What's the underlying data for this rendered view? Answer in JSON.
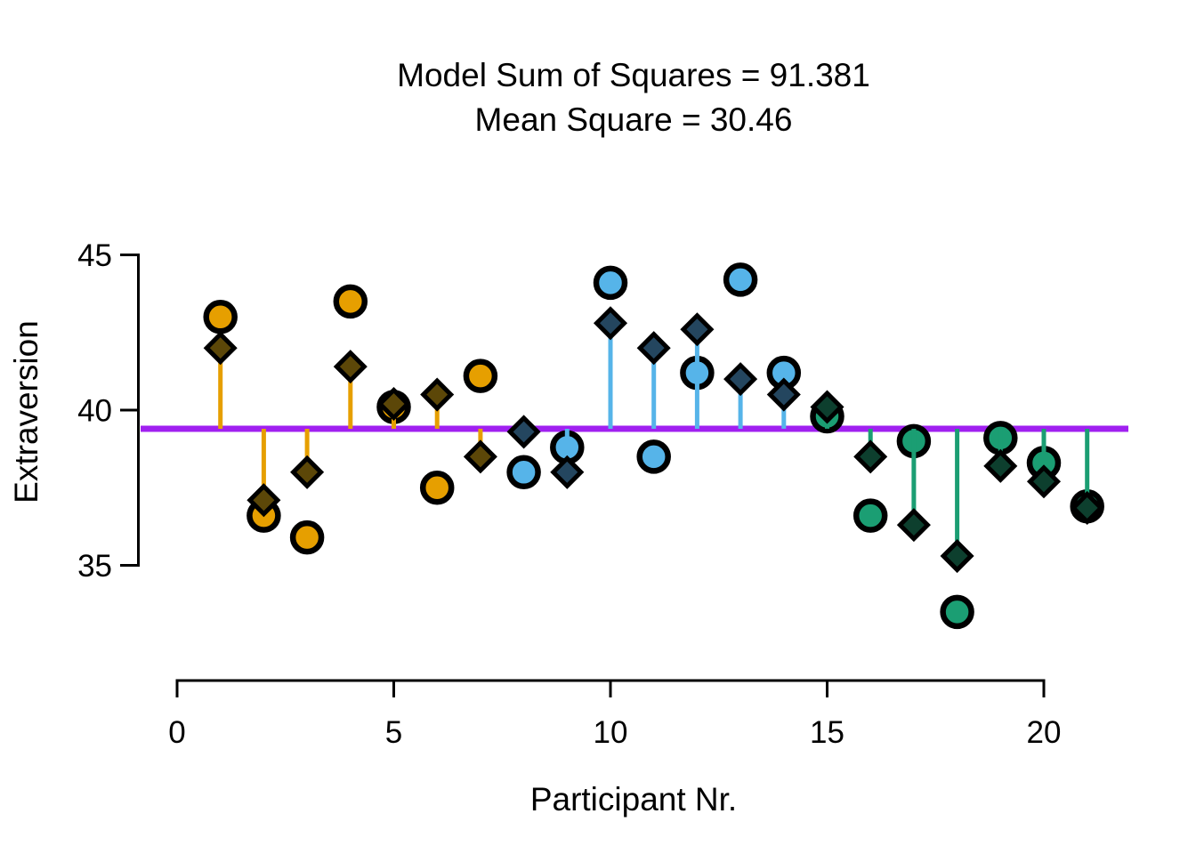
{
  "title": {
    "line1": "Model Sum of Squares = 91.381",
    "line2": "Mean Square = 30.46"
  },
  "chart_data": {
    "type": "scatter",
    "title": "Model Sum of Squares = 91.381",
    "subtitle": "Mean Square = 30.46",
    "xlabel": "Participant Nr.",
    "ylabel": "Extraversion",
    "x_ticks": [
      0,
      5,
      10,
      15,
      20
    ],
    "y_ticks": [
      45,
      40,
      35
    ],
    "xlim": [
      0,
      21.9
    ],
    "ylim": [
      32.8,
      45.3
    ],
    "grid": false,
    "legend": false,
    "grand_mean": 39.4,
    "mean_line_color": "#A020F0",
    "axis_color": "#000000",
    "marker_note": "circle = observed Extraversion, diamond = model fitted value, vertical segment = deviation of fitted value from grand mean line",
    "groups": [
      {
        "id": "g1",
        "participants": "1-7",
        "circle_color": "#E69F00",
        "segment_color": "#E69F00",
        "diamond_color": "#5C4708"
      },
      {
        "id": "g2",
        "participants": "8-14",
        "circle_color": "#56B4E9",
        "segment_color": "#56B4E9",
        "diamond_color": "#24465F"
      },
      {
        "id": "g3",
        "participants": "15-21",
        "circle_color": "#1B9E73",
        "segment_color": "#1B9E73",
        "diamond_color": "#0D3F2E"
      }
    ],
    "points": [
      {
        "participant": 1,
        "observed": 43.0,
        "fitted": 42.0,
        "group": "g1"
      },
      {
        "participant": 2,
        "observed": 36.6,
        "fitted": 37.1,
        "group": "g1"
      },
      {
        "participant": 3,
        "observed": 35.9,
        "fitted": 38.0,
        "group": "g1"
      },
      {
        "participant": 4,
        "observed": 43.5,
        "fitted": 41.4,
        "group": "g1"
      },
      {
        "participant": 5,
        "observed": 40.1,
        "fitted": 40.2,
        "group": "g1"
      },
      {
        "participant": 6,
        "observed": 37.5,
        "fitted": 40.5,
        "group": "g1"
      },
      {
        "participant": 7,
        "observed": 41.1,
        "fitted": 38.5,
        "group": "g1"
      },
      {
        "participant": 8,
        "observed": 38.0,
        "fitted": 39.3,
        "group": "g2"
      },
      {
        "participant": 9,
        "observed": 38.8,
        "fitted": 38.0,
        "group": "g2"
      },
      {
        "participant": 10,
        "observed": 44.1,
        "fitted": 42.8,
        "group": "g2"
      },
      {
        "participant": 11,
        "observed": 38.5,
        "fitted": 42.0,
        "group": "g2"
      },
      {
        "participant": 12,
        "observed": 41.2,
        "fitted": 42.6,
        "group": "g2"
      },
      {
        "participant": 13,
        "observed": 44.2,
        "fitted": 41.0,
        "group": "g2"
      },
      {
        "participant": 14,
        "observed": 41.2,
        "fitted": 40.5,
        "group": "g2"
      },
      {
        "participant": 15,
        "observed": 39.8,
        "fitted": 40.1,
        "group": "g3"
      },
      {
        "participant": 16,
        "observed": 36.6,
        "fitted": 38.5,
        "group": "g3"
      },
      {
        "participant": 17,
        "observed": 39.0,
        "fitted": 36.3,
        "group": "g3"
      },
      {
        "participant": 18,
        "observed": 33.5,
        "fitted": 35.3,
        "group": "g3"
      },
      {
        "participant": 19,
        "observed": 39.1,
        "fitted": 38.2,
        "group": "g3"
      },
      {
        "participant": 20,
        "observed": 38.3,
        "fitted": 37.7,
        "group": "g3"
      },
      {
        "participant": 21,
        "observed": 36.9,
        "fitted": 36.85,
        "group": "g3"
      }
    ]
  }
}
